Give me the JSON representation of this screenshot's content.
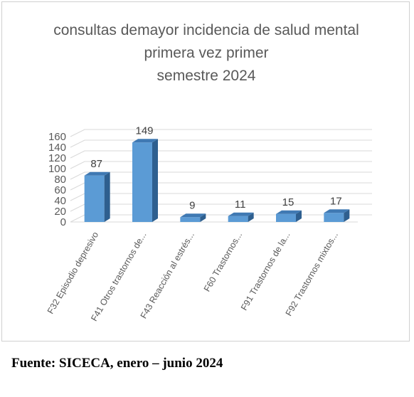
{
  "chart_data": {
    "type": "bar",
    "title_lines": [
      "consultas demayor incidencia de salud mental",
      "primera vez primer",
      "semestre 2024"
    ],
    "categories": [
      "F32 Episodio depresivo",
      "F41 Otros trastornos de...",
      "F43 Reacción al estrés...",
      "F60 Trastornos...",
      "F91 Trastornos de la...",
      "F92 Trastornos mixtos..."
    ],
    "values": [
      87,
      149,
      9,
      11,
      15,
      17
    ],
    "data_labels": [
      "87",
      "149",
      "9",
      "11",
      "15",
      "17"
    ],
    "y_ticks": [
      "0",
      "20",
      "40",
      "60",
      "80",
      "100",
      "120",
      "140",
      "160"
    ],
    "ylim": [
      0,
      160
    ],
    "grid": true,
    "legend": "none",
    "colors": {
      "bar_front": "#5b9bd5",
      "bar_side": "#2e5f8f",
      "bar_top": "#3f79b3",
      "gridline": "#d9d9d9",
      "text": "#595959"
    }
  },
  "source": "Fuente: SICECA, enero – junio 2024"
}
